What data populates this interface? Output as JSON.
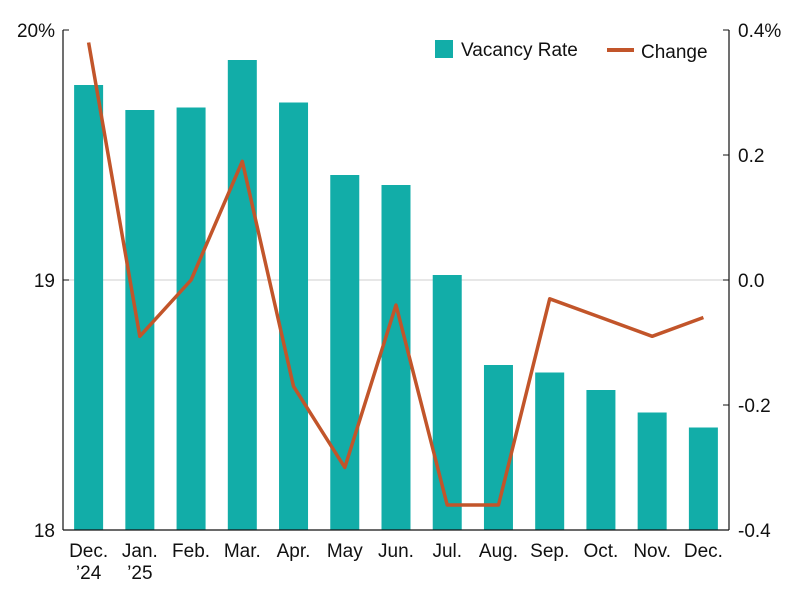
{
  "chart_data": {
    "type": "bar",
    "title": "",
    "xlabel": "",
    "categories": [
      [
        "Dec.",
        "’24"
      ],
      [
        "Jan.",
        "’25"
      ],
      [
        "Feb."
      ],
      [
        "Mar."
      ],
      [
        "Apr."
      ],
      [
        "May"
      ],
      [
        "Jun."
      ],
      [
        "Jul."
      ],
      [
        "Aug."
      ],
      [
        "Sep."
      ],
      [
        "Oct."
      ],
      [
        "Nov."
      ],
      [
        "Dec."
      ]
    ],
    "series": [
      {
        "name": "Vacancy Rate",
        "type": "bar",
        "axis": "left",
        "color": "#12ada8",
        "values": [
          19.78,
          19.68,
          19.69,
          19.88,
          19.71,
          19.42,
          19.38,
          19.02,
          18.66,
          18.63,
          18.56,
          18.47,
          18.41
        ]
      },
      {
        "name": "Change",
        "type": "line",
        "axis": "right",
        "color": "#c2552a",
        "values": [
          0.38,
          -0.09,
          0.0,
          0.19,
          -0.17,
          -0.3,
          -0.04,
          -0.36,
          -0.36,
          -0.03,
          -0.06,
          -0.09,
          -0.06
        ]
      }
    ],
    "y_left": {
      "ylim": [
        18,
        20
      ],
      "ticks": [
        18,
        19,
        20
      ],
      "tick_labels": [
        "18",
        "19",
        "20%"
      ]
    },
    "y_right": {
      "ylim": [
        -0.4,
        0.4
      ],
      "ticks": [
        -0.4,
        -0.2,
        0.0,
        0.2,
        0.4
      ],
      "tick_labels": [
        "-0.4",
        "-0.2",
        "0.0",
        "0.2",
        "0.4%"
      ]
    },
    "grid": {
      "horizontal_at_left": [
        19
      ]
    },
    "legend": "top-right"
  }
}
